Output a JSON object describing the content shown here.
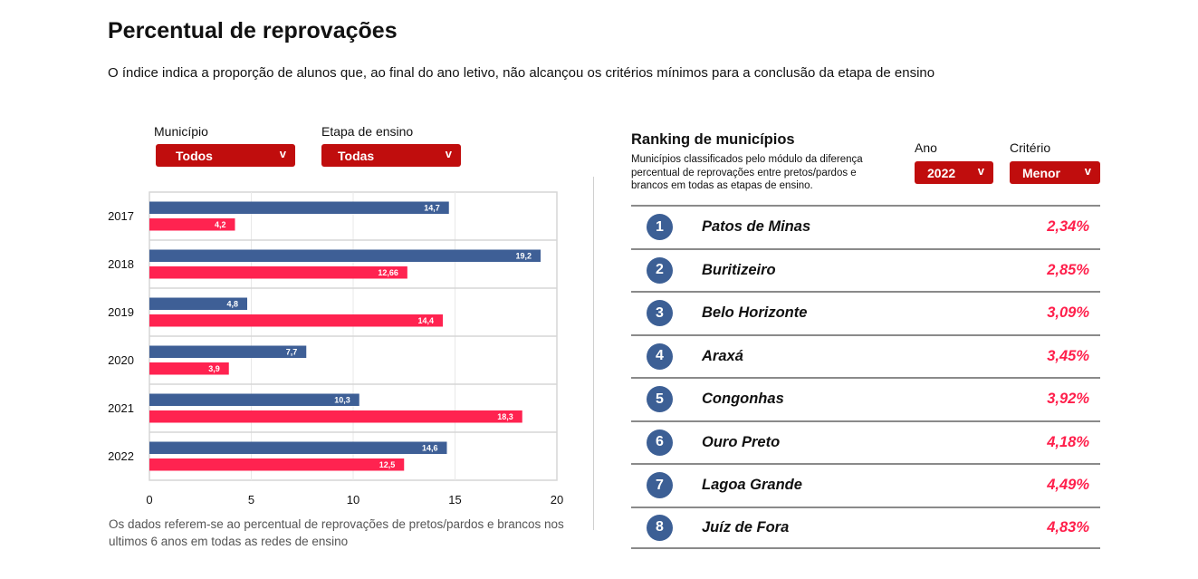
{
  "header": {
    "title": "Percentual de reprovações",
    "subtitle": "O índice indica a proporção de alunos que, ao final do ano letivo, não alcançou os critérios mínimos para a conclusão da etapa de ensino"
  },
  "filters": {
    "municipio": {
      "label": "Município",
      "value": "Todos",
      "arrow": "v"
    },
    "etapa": {
      "label": "Etapa de ensino",
      "value": "Todas",
      "arrow": "v"
    }
  },
  "chart_data": {
    "type": "bar",
    "orientation": "horizontal",
    "categories": [
      "2017",
      "2018",
      "2019",
      "2020",
      "2021",
      "2022"
    ],
    "series": [
      {
        "values": [
          14.7,
          19.2,
          4.8,
          7.7,
          10.3,
          14.6
        ],
        "labels": [
          "14,7",
          "19,2",
          "4,8",
          "7,7",
          "10,3",
          "14,6"
        ],
        "color": "#3e5f96"
      },
      {
        "values": [
          4.2,
          12.66,
          14.4,
          3.9,
          18.3,
          12.5
        ],
        "labels": [
          "4,2",
          "12,66",
          "14,4",
          "3,9",
          "18,3",
          "12,5"
        ],
        "color": "#ff2350"
      }
    ],
    "xlim": [
      0,
      20
    ],
    "xticks": [
      0,
      5,
      10,
      15,
      20
    ],
    "xtick_labels": [
      "0",
      "5",
      "10",
      "15",
      "20"
    ],
    "grid": true,
    "title": "",
    "xlabel": "",
    "ylabel": ""
  },
  "chart_note": "Os dados referem-se ao percentual de reprovações de pretos/pardos e brancos nos ultimos 6 anos em todas as redes de ensino",
  "ranking": {
    "title": "Ranking de municípios",
    "description": "Municípios classificados pelo módulo da diferença percentual de reprovações entre pretos/pardos e brancos em todas as etapas de ensino.",
    "ano": {
      "label": "Ano",
      "value": "2022",
      "arrow": "v"
    },
    "criterio": {
      "label": "Critério",
      "value": "Menor",
      "arrow": "v"
    },
    "items": [
      {
        "rank": "1",
        "name": "Patos de Minas",
        "value": "2,34%"
      },
      {
        "rank": "2",
        "name": "Buritizeiro",
        "value": "2,85%"
      },
      {
        "rank": "3",
        "name": "Belo Horizonte",
        "value": "3,09%"
      },
      {
        "rank": "4",
        "name": "Araxá",
        "value": "3,45%"
      },
      {
        "rank": "5",
        "name": "Congonhas",
        "value": "3,92%"
      },
      {
        "rank": "6",
        "name": "Ouro Preto",
        "value": "4,18%"
      },
      {
        "rank": "7",
        "name": "Lagoa Grande",
        "value": "4,49%"
      },
      {
        "rank": "8",
        "name": "Juíz de Fora",
        "value": "4,83%"
      }
    ]
  }
}
